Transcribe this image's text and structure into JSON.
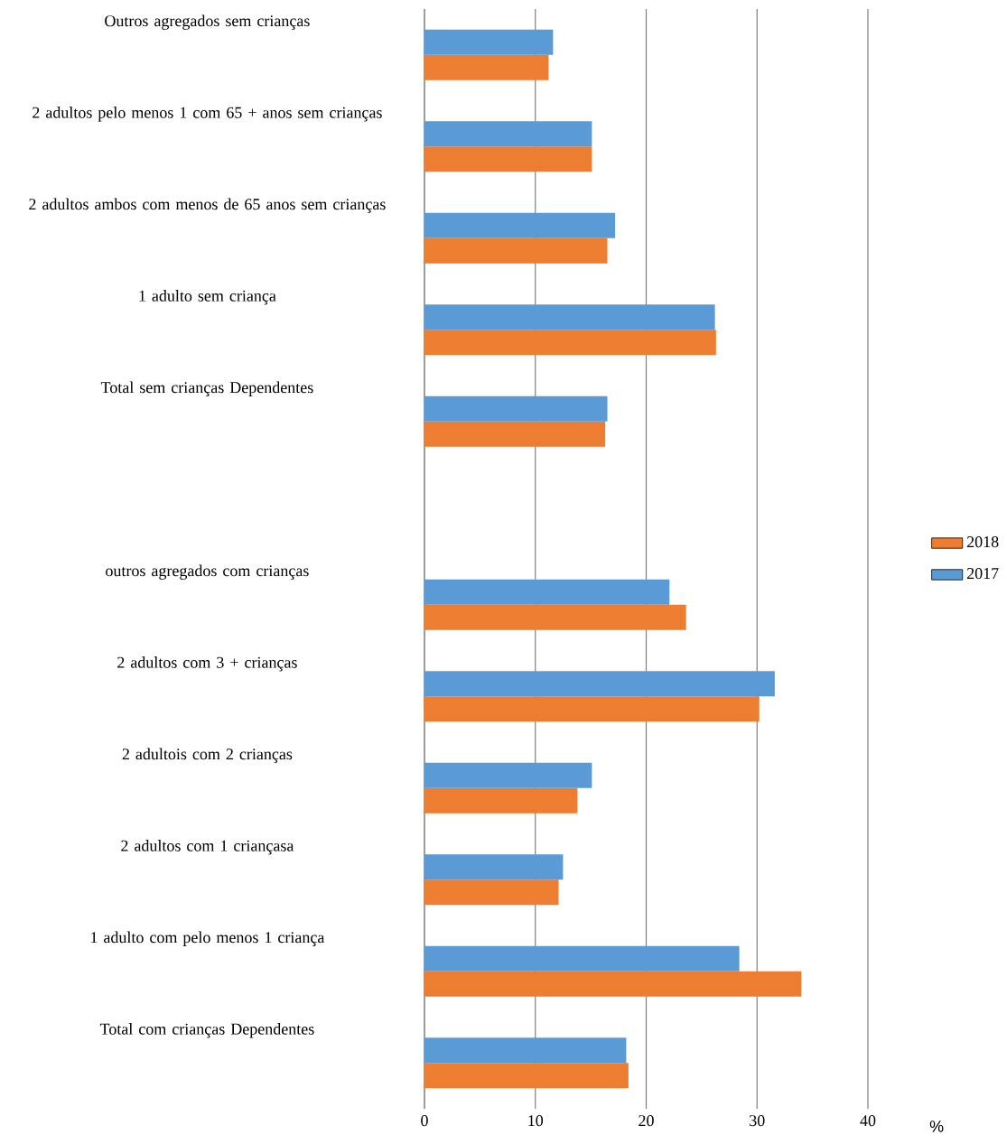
{
  "chart_data": {
    "type": "bar",
    "orientation": "horizontal",
    "categories": [
      "Outros agregados sem crianças",
      "2 adultos pelo menos 1  com  65 +  anos sem crianças",
      "2 adultos ambos com menos de 65 anos sem crianças",
      "1 adulto sem  criança",
      "Total sem crianças Dependentes",
      null,
      "outros agregados com crianças",
      "2 adultos com 3 + crianças",
      "2 adultois com 2 crianças",
      "2 adultos com 1 criançasa",
      "1 adulto com pelo menos 1 criança",
      "Total com crianças Dependentes"
    ],
    "series": [
      {
        "name": "2018",
        "color": "#ed7d31",
        "values": [
          11.2,
          15.1,
          16.5,
          26.3,
          16.3,
          null,
          23.6,
          30.2,
          13.8,
          12.1,
          34.0,
          18.4
        ]
      },
      {
        "name": "2017",
        "color": "#5b9bd5",
        "values": [
          11.6,
          15.1,
          17.2,
          26.2,
          16.5,
          null,
          22.1,
          31.6,
          15.1,
          12.5,
          28.4,
          18.2
        ]
      }
    ],
    "xlabel": "%",
    "xlim": [
      0,
      40
    ],
    "xticks": [
      0,
      10,
      20,
      30,
      40
    ],
    "grid": "x",
    "legend": "right"
  }
}
